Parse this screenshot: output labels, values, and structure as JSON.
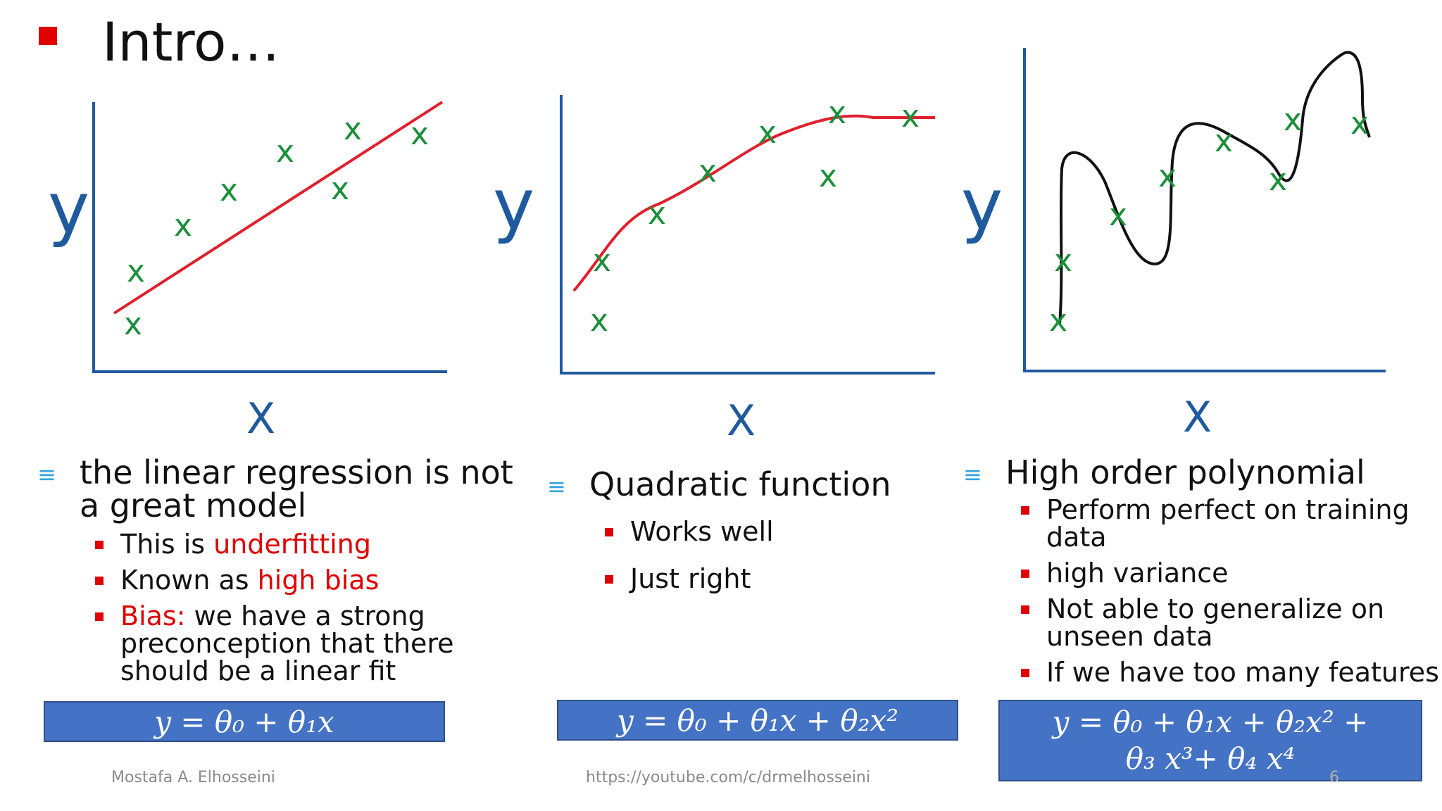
{
  "slide": {
    "title": "Intro…",
    "footer": {
      "author": "Mostafa A. Elhosseini",
      "url": "https://youtube.com/c/drmelhosseini",
      "page": "6"
    },
    "plots": {
      "axis_y_label": "y",
      "axis_x_label": "X"
    },
    "columns": [
      {
        "heading": [
          "the linear regression is not",
          "a great model"
        ],
        "bullets": [
          {
            "plain": "This is ",
            "highlight": "underfitting",
            "rest": ""
          },
          {
            "plain": "Known as ",
            "highlight": "high bias",
            "rest": ""
          },
          {
            "plain": "",
            "highlight": "Bias:",
            "rest": " we have a strong",
            "more": [
              "preconception that there",
              "should be a linear fit"
            ]
          }
        ],
        "equation": [
          "y =  θ₀ + θ₁x"
        ]
      },
      {
        "heading": [
          "Quadratic function"
        ],
        "bullets": [
          {
            "text": "Works well"
          },
          {
            "text": "Just right"
          }
        ],
        "equation": [
          "y =  θ₀ + θ₁x + θ₂x²"
        ]
      },
      {
        "heading": [
          "High order polynomial"
        ],
        "bullets": [
          {
            "text": "Perform perfect on training",
            "more": "data"
          },
          {
            "text": "high variance"
          },
          {
            "text": "Not able to generalize on",
            "more": "unseen data"
          },
          {
            "text": "If we have too many features"
          }
        ],
        "equation": [
          "y =  θ₀ + θ₁x + θ₂x² +",
          "θ₃ x³+ θ₄ x⁴"
        ]
      }
    ]
  },
  "colors": {
    "bullet_red": "#e00000",
    "axis_blue": "#1f5a9e",
    "point_green": "#1a8f3a",
    "fit_red": "#e0202c",
    "fit_black": "#111111",
    "equation_bg": "#4472c4"
  }
}
